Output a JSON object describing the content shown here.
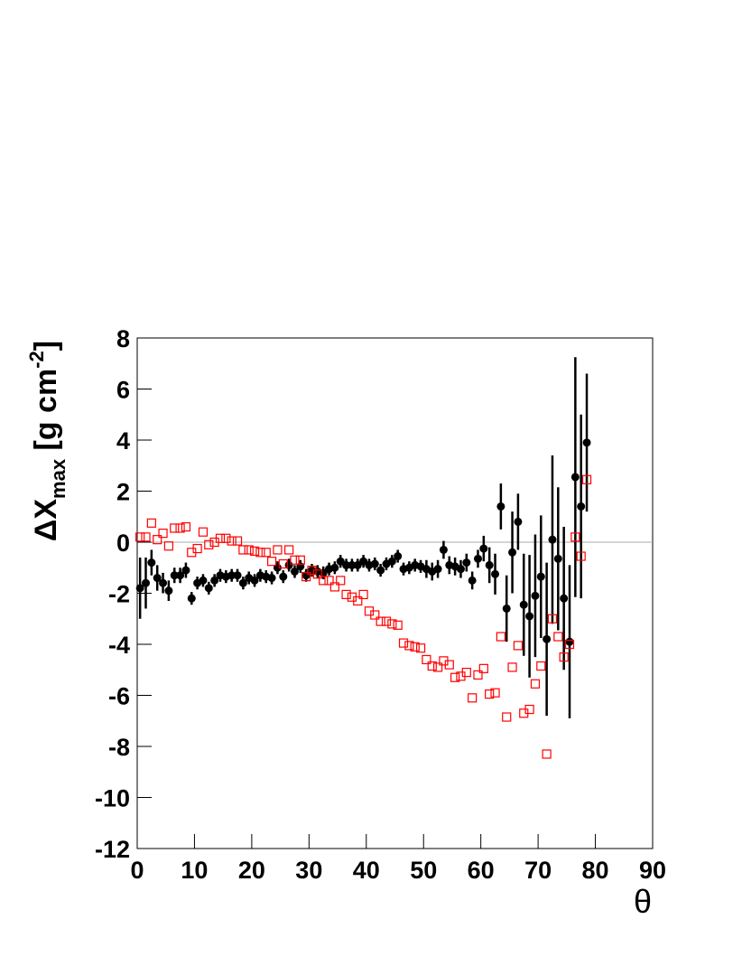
{
  "chart_data": {
    "type": "scatter",
    "y_label": {
      "main": "ΔX",
      "sub": "max",
      "unit": " [g cm",
      "sup": "-2",
      "close": "]"
    },
    "x_label": "θ",
    "xlim": [
      0,
      90
    ],
    "xticks": [
      0,
      10,
      20,
      30,
      40,
      50,
      60,
      70,
      80,
      90
    ],
    "ylim": [
      -12,
      8
    ],
    "yticks": [
      -12,
      -10,
      -8,
      -6,
      -4,
      -2,
      0,
      2,
      4,
      6,
      8
    ],
    "x": [
      0.5,
      1.5,
      2.5,
      3.5,
      4.5,
      5.5,
      6.5,
      7.5,
      8.5,
      9.5,
      10.5,
      11.5,
      12.5,
      13.5,
      14.5,
      15.5,
      16.5,
      17.5,
      18.5,
      19.5,
      20.5,
      21.5,
      22.5,
      23.5,
      24.5,
      25.5,
      26.5,
      27.5,
      28.5,
      29.5,
      30.5,
      31.5,
      32.5,
      33.5,
      34.5,
      35.5,
      36.5,
      37.5,
      38.5,
      39.5,
      40.5,
      41.5,
      42.5,
      43.5,
      44.5,
      45.5,
      46.5,
      47.5,
      48.5,
      49.5,
      50.5,
      51.5,
      52.5,
      53.5,
      54.5,
      55.5,
      56.5,
      57.5,
      58.5,
      59.5,
      60.5,
      61.5,
      62.5,
      63.5,
      64.5,
      65.5,
      66.5,
      67.5,
      68.5,
      69.5,
      70.5,
      71.5,
      72.5,
      73.5,
      74.5,
      75.5,
      76.5,
      77.5,
      78.5
    ],
    "series": [
      {
        "color": "#000000",
        "marker": "circle",
        "values": [
          -1.8,
          -1.6,
          -0.8,
          -1.4,
          -1.6,
          -1.9,
          -1.3,
          -1.3,
          -1.1,
          -2.2,
          -1.6,
          -1.5,
          -1.8,
          -1.5,
          -1.3,
          -1.35,
          -1.3,
          -1.3,
          -1.6,
          -1.4,
          -1.5,
          -1.3,
          -1.35,
          -1.4,
          -1.0,
          -1.35,
          -0.9,
          -1.15,
          -0.95,
          -1.3,
          -1.1,
          -1.15,
          -1.2,
          -1.05,
          -1.0,
          -0.75,
          -0.9,
          -0.9,
          -0.9,
          -0.75,
          -0.9,
          -0.85,
          -1.1,
          -0.85,
          -0.75,
          -0.55,
          -1.05,
          -1.0,
          -0.9,
          -0.95,
          -1.05,
          -1.15,
          -1.05,
          -0.3,
          -0.9,
          -0.95,
          -1.05,
          -0.8,
          -1.5,
          -0.65,
          -0.25,
          -0.9,
          -1.25,
          1.4,
          -2.6,
          -0.4,
          0.8,
          -2.45,
          -2.9,
          -2.1,
          -1.35,
          -3.8,
          0.1,
          -0.65,
          -2.2,
          -3.9,
          2.55,
          1.4,
          3.9
        ],
        "errors": [
          1.2,
          1.0,
          0.5,
          0.5,
          0.4,
          0.4,
          0.3,
          0.3,
          0.3,
          0.25,
          0.25,
          0.25,
          0.25,
          0.25,
          0.25,
          0.25,
          0.25,
          0.25,
          0.25,
          0.25,
          0.25,
          0.25,
          0.25,
          0.25,
          0.25,
          0.25,
          0.25,
          0.25,
          0.25,
          0.25,
          0.25,
          0.25,
          0.25,
          0.25,
          0.25,
          0.25,
          0.25,
          0.25,
          0.25,
          0.25,
          0.25,
          0.25,
          0.25,
          0.25,
          0.25,
          0.25,
          0.25,
          0.25,
          0.25,
          0.25,
          0.35,
          0.35,
          0.35,
          0.35,
          0.35,
          0.35,
          0.35,
          0.35,
          0.35,
          0.35,
          0.5,
          0.7,
          0.8,
          0.9,
          1.3,
          1.6,
          1.1,
          2.0,
          2.4,
          2.4,
          2.4,
          3.0,
          3.3,
          2.8,
          2.8,
          3.0,
          4.7,
          3.6,
          2.7
        ]
      },
      {
        "color": "#ff0000",
        "marker": "open-square",
        "values": [
          0.2,
          0.2,
          0.75,
          0.1,
          0.35,
          -0.15,
          0.55,
          0.55,
          0.6,
          -0.4,
          -0.25,
          0.4,
          -0.1,
          0.0,
          0.15,
          0.15,
          0.05,
          0.05,
          -0.3,
          -0.3,
          -0.35,
          -0.4,
          -0.4,
          -0.75,
          -0.3,
          -0.85,
          -0.3,
          -0.7,
          -0.7,
          -1.35,
          -1.1,
          -1.25,
          -1.5,
          -1.5,
          -1.75,
          -1.5,
          -2.05,
          -2.15,
          -2.3,
          -2.05,
          -2.7,
          -2.85,
          -3.1,
          -3.1,
          -3.2,
          -3.25,
          -3.95,
          -4.05,
          -4.1,
          -4.15,
          -4.6,
          -4.85,
          -4.9,
          -4.65,
          -4.8,
          -5.3,
          -5.25,
          -5.1,
          -6.1,
          -5.2,
          -4.95,
          -5.95,
          -5.9,
          -3.7,
          -6.85,
          -4.9,
          -4.05,
          -6.7,
          -6.55,
          -5.55,
          -4.85,
          -8.3,
          -3.0,
          -3.7,
          -4.5,
          -4.0,
          0.2,
          -0.55,
          2.45
        ]
      }
    ]
  }
}
